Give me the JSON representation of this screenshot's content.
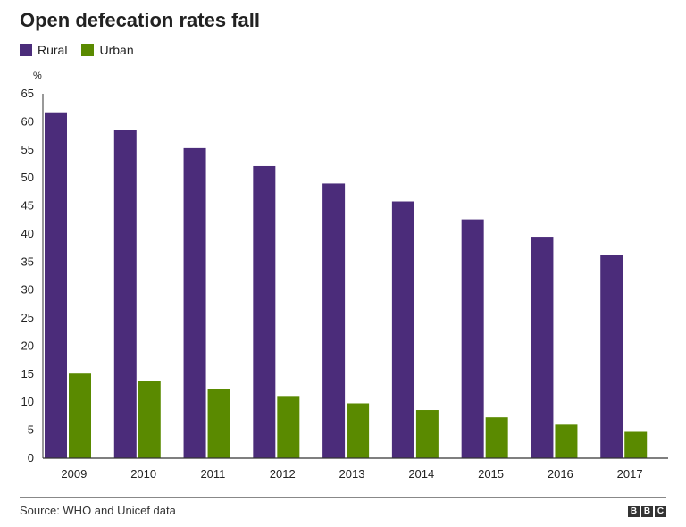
{
  "colors": {
    "rural": "#4b2c7a",
    "urban": "#5a8a00",
    "axis": "#333333",
    "grid": "#d9d9d9"
  },
  "legend": {
    "rural_label": "Rural",
    "urban_label": "Urban"
  },
  "footer": {
    "source": "Source: WHO and Unicef data",
    "logo_letters": [
      "B",
      "B",
      "C"
    ]
  },
  "chart_data": {
    "type": "bar",
    "title": "Open defecation rates fall",
    "ylabel": "%",
    "xlabel": "",
    "ylim": [
      0,
      65
    ],
    "yticks": [
      0,
      5,
      10,
      15,
      20,
      25,
      30,
      35,
      40,
      45,
      50,
      55,
      60,
      65
    ],
    "categories": [
      "2009",
      "2010",
      "2011",
      "2012",
      "2013",
      "2014",
      "2015",
      "2016",
      "2017"
    ],
    "series": [
      {
        "name": "Rural",
        "values": [
          61.7,
          58.5,
          55.3,
          52.1,
          49.0,
          45.8,
          42.6,
          39.5,
          36.3
        ]
      },
      {
        "name": "Urban",
        "values": [
          15.1,
          13.7,
          12.4,
          11.1,
          9.8,
          8.6,
          7.3,
          6.0,
          4.7
        ]
      }
    ],
    "legend_position": "top-left",
    "grid": false
  }
}
